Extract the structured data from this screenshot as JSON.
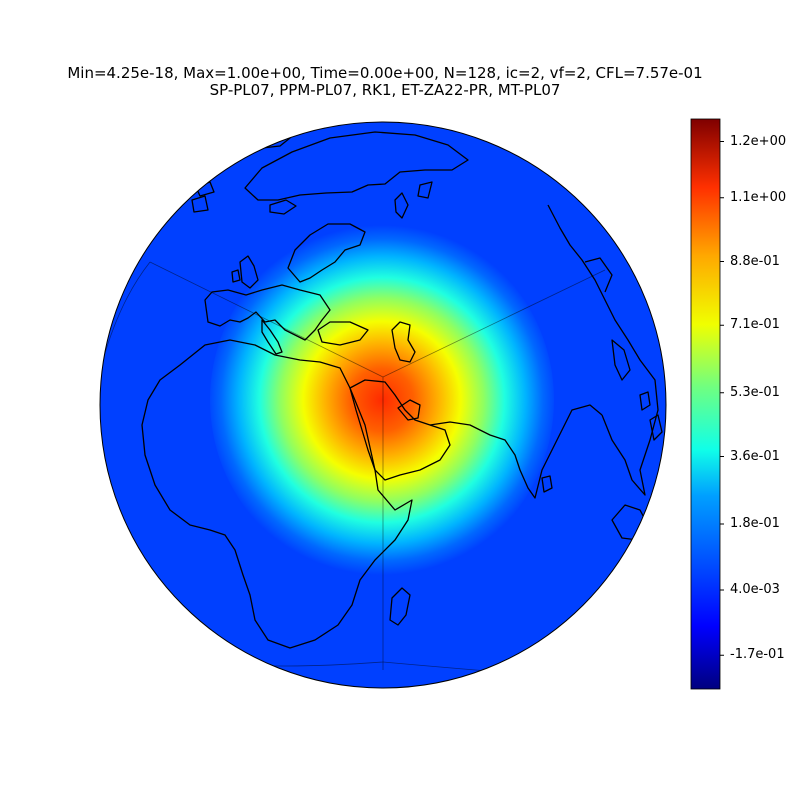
{
  "title": {
    "line1": "Min=4.25e-18, Max=1.00e+00, Time=0.00e+00, N=128, ic=2, vf=2, CFL=7.57e-01",
    "line2": "SP-PL07, PPM-PL07, RK1, ET-ZA22-PR, MT-PL07"
  },
  "map": {
    "projection": "orthographic",
    "grid": "cubed-sphere panel edges",
    "field": "gaussian hill centered over the Arabian Peninsula",
    "colormap": "jet",
    "background_color": "#0040ff",
    "peak_color": "#ff2000"
  },
  "colorbar": {
    "range": [
      -0.26,
      1.26
    ],
    "ticks": [
      {
        "value": 1.2,
        "label": "1.2e+00"
      },
      {
        "value": 1.05,
        "label": "1.1e+00"
      },
      {
        "value": 0.88,
        "label": "8.8e-01"
      },
      {
        "value": 0.71,
        "label": "7.1e-01"
      },
      {
        "value": 0.53,
        "label": "5.3e-01"
      },
      {
        "value": 0.36,
        "label": "3.6e-01"
      },
      {
        "value": 0.18,
        "label": "1.8e-01"
      },
      {
        "value": 0.004,
        "label": "4.0e-03"
      },
      {
        "value": -0.17,
        "label": "-1.7e-01"
      }
    ]
  }
}
